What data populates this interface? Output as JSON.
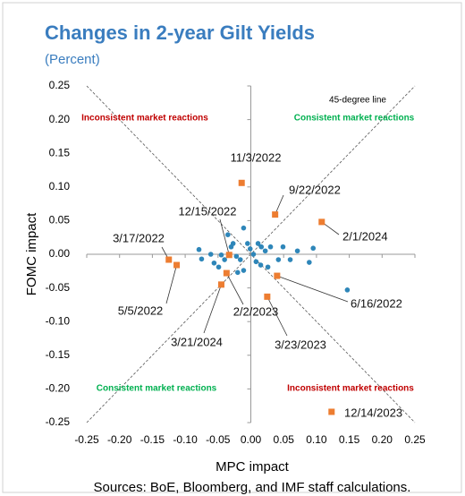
{
  "chart_data": {
    "type": "scatter",
    "title": "Changes in 2-year Gilt Yields",
    "subtitle": "(Percent)",
    "x_label": "MPC impact",
    "y_label": "FOMC impact",
    "source": "Sources: BoE, Bloomberg, and IMF staff calculations.",
    "xlim": [
      -0.25,
      0.25
    ],
    "ylim": [
      -0.25,
      0.25
    ],
    "xticks": [
      -0.25,
      {
        "value": -0.2,
        "label": "-0.20"
      },
      -0.15,
      {
        "value": -0.1,
        "label": "-0.10"
      },
      -0.05,
      {
        "value": 0,
        "label": "0.00"
      },
      0.05,
      {
        "value": 0.1,
        "label": "0.10"
      },
      0.15,
      {
        "value": 0.2,
        "label": "0.20"
      },
      0.25
    ],
    "yticks": [
      0.25,
      {
        "value": 0.2,
        "label": "0.20"
      },
      0.15,
      {
        "value": 0.1,
        "label": "0.10"
      },
      0.05,
      {
        "value": 0,
        "label": "0.00"
      },
      -0.05,
      {
        "value": -0.1,
        "label": "-0.10"
      },
      -0.15,
      {
        "value": -0.2,
        "label": "-0.20"
      },
      -0.25
    ],
    "grid": false,
    "diagonals": true,
    "annotations": [
      {
        "text": "45-degree line",
        "color": "#000000"
      },
      {
        "text": "Inconsistent market reactions",
        "color": "#c00000"
      },
      {
        "text": "Consistent market reactions",
        "color": "#00b050"
      },
      {
        "text": "Consistent market reactions",
        "color": "#00b050"
      },
      {
        "text": "Inconsistent market reactions",
        "color": "#c00000"
      }
    ],
    "series": [
      {
        "color": "#2e86b9",
        "marker": "circle",
        "x": [
          -0.079,
          -0.075,
          -0.061,
          -0.056,
          -0.049,
          -0.045,
          -0.04,
          -0.035,
          -0.027,
          -0.022,
          -0.016,
          -0.011,
          -0.005,
          -0.001,
          0.004,
          0.011,
          0.016,
          0.008,
          0.015,
          0.022,
          0.026,
          0.03,
          0.042,
          0.049,
          0.06,
          0.071,
          0.089,
          0.095,
          0.147,
          -0.011,
          -0.02,
          -0.03
        ],
        "y": [
          0.007,
          -0.007,
          0,
          -0.013,
          -0.019,
          -0.001,
          -0.008,
          0.029,
          0.016,
          -0.003,
          -0.008,
          0.039,
          0.016,
          0.008,
          0,
          0.016,
          0.011,
          -0.011,
          -0.016,
          0.005,
          -0.019,
          0.011,
          -0.008,
          0.011,
          -0.008,
          0.005,
          -0.012,
          0.009,
          -0.053,
          -0.024,
          -0.027,
          0.011
        ]
      },
      {
        "color": "#ed7d31",
        "marker": "square",
        "x": [
          -0.014,
          0.037,
          0.108,
          -0.033,
          -0.125,
          -0.113,
          0.04,
          -0.037,
          -0.045,
          0.025,
          0.123
        ],
        "y": [
          0.106,
          0.059,
          0.048,
          -0.001,
          -0.008,
          -0.016,
          -0.032,
          -0.028,
          -0.045,
          -0.063,
          -0.234
        ],
        "point_labels": [
          "11/3/2022",
          "9/22/2022",
          "2/1/2024",
          "12/15/2022",
          "3/17/2022",
          "5/5/2022",
          "6/16/2022",
          "2/2/2023",
          "3/21/2024",
          "3/23/2023",
          "12/14/2023"
        ]
      }
    ]
  }
}
